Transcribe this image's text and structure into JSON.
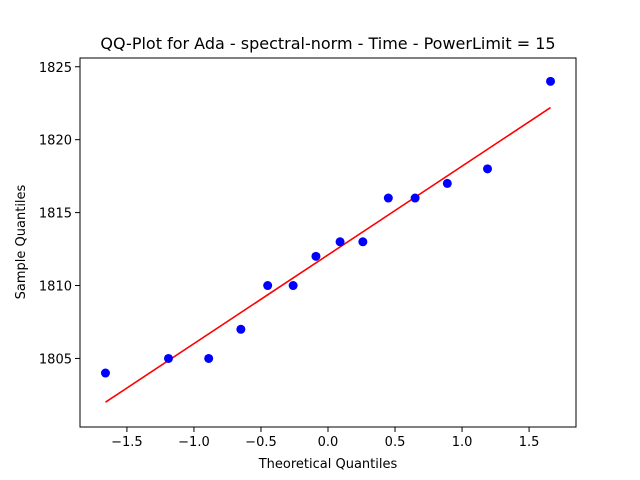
{
  "chart_data": {
    "type": "scatter",
    "title": "QQ-Plot for Ada - spectral-norm - Time - PowerLimit = 15",
    "xlabel": "Theoretical Quantiles",
    "ylabel": "Sample Quantiles",
    "xlim": [
      -1.85,
      1.85
    ],
    "ylim": [
      1800.3,
      1825.6
    ],
    "xticks": [
      -1.5,
      -1.0,
      -0.5,
      0.0,
      0.5,
      1.0,
      1.5
    ],
    "xtick_labels": [
      "−1.5",
      "−1.0",
      "−0.5",
      "0.0",
      "0.5",
      "1.0",
      "1.5"
    ],
    "yticks": [
      1805,
      1810,
      1815,
      1820,
      1825
    ],
    "ytick_labels": [
      "1805",
      "1810",
      "1815",
      "1820",
      "1825"
    ],
    "grid": false,
    "series": [
      {
        "kind": "points",
        "color": "#0000ff",
        "x": [
          -1.66,
          -1.19,
          -0.89,
          -0.65,
          -0.45,
          -0.26,
          -0.09,
          0.09,
          0.26,
          0.45,
          0.65,
          0.89,
          1.19,
          1.66
        ],
        "y": [
          1804,
          1805,
          1805,
          1807,
          1810,
          1810,
          1812,
          1813,
          1813,
          1816,
          1816,
          1817,
          1818,
          1824
        ]
      },
      {
        "kind": "line",
        "color": "#ff0000",
        "x": [
          -1.66,
          1.66
        ],
        "y": [
          1802.0,
          1822.2
        ]
      }
    ]
  }
}
